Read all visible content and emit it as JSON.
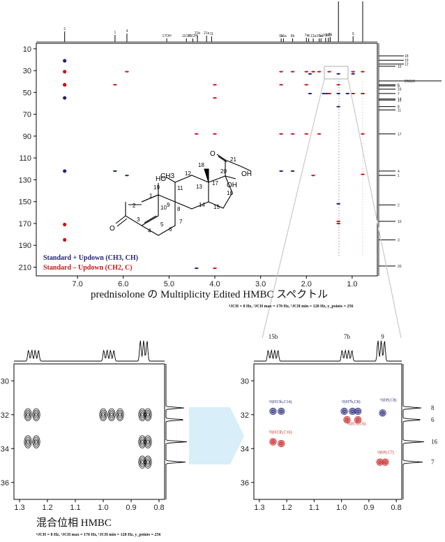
{
  "chart_data": [
    {
      "type": "scatter",
      "name": "main",
      "title": "prednisolone の Multiplicity Edited HMBC スペクトル",
      "params": "ⁿJCH = 8 Hz, ¹JCH max = 170 Hz, ¹JCH min = 120 Hz, y_points = 256",
      "xlim": [
        7.9,
        0.45
      ],
      "ylim": [
        5,
        218
      ],
      "xticks": [
        "7.0",
        "6.0",
        "5.0",
        "4.0",
        "3.0",
        "2.0",
        "1.0"
      ],
      "xtick_values": [
        7.0,
        6.0,
        5.0,
        4.0,
        3.0,
        2.0,
        1.0
      ],
      "yticks": [
        "10",
        "30",
        "50",
        "70",
        "90",
        "110",
        "130",
        "150",
        "170",
        "190",
        "210"
      ],
      "ytick_values": [
        10,
        30,
        50,
        70,
        90,
        110,
        130,
        150,
        170,
        190,
        210
      ],
      "legend": [
        {
          "label": "Standard + Updown (CH3, CH)",
          "color": "#23237a"
        },
        {
          "label": "Standard – Updown (CH2, C)",
          "color": "#c41818"
        }
      ],
      "h_peak_labels": [
        "2",
        "1",
        "4",
        "17OH",
        "11OH",
        "21OH",
        "21b",
        "21a",
        "11",
        "6a",
        "16a",
        "6b",
        "7a",
        "8",
        "12a",
        "15a",
        "14",
        "16b",
        "12b",
        "7b",
        "19",
        "9",
        "18"
      ],
      "h_peak_positions": [
        7.28,
        6.18,
        5.92,
        5.05,
        4.62,
        4.48,
        4.38,
        4.18,
        4.07,
        2.55,
        2.5,
        2.3,
        2.0,
        1.95,
        1.85,
        1.72,
        1.68,
        1.58,
        1.52,
        1.48,
        1.3,
        0.98,
        0.77
      ],
      "c_peak_labels": [
        "18",
        "19",
        "12",
        "15",
        "DMSO",
        "6",
        "9",
        "16",
        "7",
        "14",
        "13",
        "8",
        "11",
        "17",
        "4",
        "1",
        "2",
        "10",
        "3",
        "20"
      ],
      "c_peak_positions": [
        16.5,
        20.5,
        24,
        26,
        39.5,
        43,
        44,
        47,
        51,
        56,
        57,
        63,
        66,
        88,
        122,
        126,
        153,
        168,
        185,
        209
      ],
      "series": [
        {
          "name": "Standard + Updown (CH3, CH)",
          "color": "#23237a",
          "points": [
            [
              7.28,
              21
            ],
            [
              7.28,
              43
            ],
            [
              7.28,
              55
            ],
            [
              7.28,
              122
            ],
            [
              6.18,
              122
            ],
            [
              5.92,
              126
            ],
            [
              2.55,
              122
            ],
            [
              2.3,
              122
            ],
            [
              1.92,
              33
            ],
            [
              1.92,
              51
            ],
            [
              1.62,
              51
            ],
            [
              1.55,
              51
            ],
            [
              1.5,
              51
            ],
            [
              1.3,
              33
            ],
            [
              1.3,
              51
            ],
            [
              1.3,
              63
            ],
            [
              1.3,
              152
            ],
            [
              1.1,
              51
            ],
            [
              0.98,
              33
            ],
            [
              0.98,
              51
            ],
            [
              0.77,
              51
            ],
            [
              4.4,
              211
            ]
          ]
        },
        {
          "name": "Standard – Updown (CH2, C)",
          "color": "#c41818",
          "points": [
            [
              7.28,
              31
            ],
            [
              7.28,
              43
            ],
            [
              7.28,
              171
            ],
            [
              7.28,
              185
            ],
            [
              6.18,
              43
            ],
            [
              5.92,
              31
            ],
            [
              4.4,
              88
            ],
            [
              4.0,
              43
            ],
            [
              4.0,
              55
            ],
            [
              4.0,
              88
            ],
            [
              4.0,
              211
            ],
            [
              2.55,
              31
            ],
            [
              2.55,
              43
            ],
            [
              2.55,
              88
            ],
            [
              2.3,
              31
            ],
            [
              2.3,
              88
            ],
            [
              2.0,
              31
            ],
            [
              2.0,
              43
            ],
            [
              2.0,
              88
            ],
            [
              1.85,
              31
            ],
            [
              1.85,
              126
            ],
            [
              1.72,
              31
            ],
            [
              1.72,
              88
            ],
            [
              1.5,
              31
            ],
            [
              1.5,
              51
            ],
            [
              1.3,
              43
            ],
            [
              1.3,
              168
            ],
            [
              1.3,
              170
            ],
            [
              0.98,
              31
            ],
            [
              0.98,
              51
            ],
            [
              0.77,
              31
            ],
            [
              0.77,
              51
            ],
            [
              0.77,
              88
            ],
            [
              0.77,
              125
            ]
          ]
        }
      ],
      "structure": {
        "atoms": [
          "1",
          "2",
          "3",
          "4",
          "5",
          "6",
          "7",
          "8",
          "9",
          "10",
          "11",
          "12",
          "13",
          "14",
          "15",
          "16",
          "17",
          "18",
          "19",
          "20",
          "21"
        ],
        "groups": [
          "HO",
          "OH",
          "OH",
          "O",
          "O",
          "CH3",
          "CH3"
        ]
      }
    },
    {
      "type": "scatter",
      "name": "zoom-left",
      "title": "混合位相 HMBC",
      "params": "ⁿJCH = 8 Hz, ¹JCH max = 170 Hz, ¹JCH min = 120 Hz, y_points = 256",
      "xlim": [
        1.32,
        0.78
      ],
      "ylim": [
        29,
        37
      ],
      "xticks": [
        "1.3",
        "1.2",
        "1.1",
        "1.0",
        "0.9",
        "0.8"
      ],
      "xtick_values": [
        1.3,
        1.2,
        1.1,
        1.0,
        0.9,
        0.8
      ],
      "yticks": [
        "30",
        "32",
        "34",
        "36"
      ],
      "ytick_values": [
        30,
        32,
        34,
        36
      ],
      "series": [
        {
          "name": "",
          "color": "#000000",
          "points": [
            [
              1.27,
              32
            ],
            [
              1.24,
              32
            ],
            [
              1.27,
              33.6
            ],
            [
              1.24,
              33.6
            ],
            [
              1.0,
              32
            ],
            [
              0.97,
              32
            ],
            [
              0.94,
              32
            ],
            [
              0.86,
              32
            ],
            [
              0.84,
              32
            ],
            [
              0.86,
              33.6
            ],
            [
              0.84,
              33.6
            ],
            [
              0.86,
              34.8
            ],
            [
              0.84,
              34.8
            ]
          ]
        }
      ]
    },
    {
      "type": "scatter",
      "name": "zoom-right",
      "xlim": [
        1.32,
        0.78
      ],
      "ylim": [
        29,
        37
      ],
      "xticks": [
        "1.3",
        "1.2",
        "1.1",
        "1.0",
        "0.9",
        "0.8"
      ],
      "xtick_values": [
        1.3,
        1.2,
        1.1,
        1.0,
        0.9,
        0.8
      ],
      "yticks": [
        "30",
        "32",
        "34",
        "36"
      ],
      "ytick_values": [
        30,
        32,
        34,
        36
      ],
      "h_peak_labels": [
        "15b",
        "7b",
        "9"
      ],
      "h_peak_positions": [
        1.25,
        0.98,
        0.85
      ],
      "c_peak_labels": [
        "8",
        "6",
        "16",
        "7"
      ],
      "c_peak_positions": [
        31.6,
        32.3,
        33.6,
        34.8
      ],
      "annotations": [
        {
          "label": "²J(H15b,C14)",
          "x": 1.265,
          "y": 31.3,
          "color": "#23237a"
        },
        {
          "label": "²J(H7b,C8)",
          "x": 1.0,
          "y": 31.3,
          "color": "#23237a"
        },
        {
          "label": "²J(H9,C8)",
          "x": 0.86,
          "y": 31.2,
          "color": "#23237a"
        },
        {
          "label": "²J(H7b,C6)",
          "x": 0.98,
          "y": 32.6,
          "color": "#c41818"
        },
        {
          "label": "²J(H15b,C16)",
          "x": 1.265,
          "y": 33.1,
          "color": "#c41818"
        },
        {
          "label": "²J(H9,C7)",
          "x": 0.87,
          "y": 34.3,
          "color": "#c41818"
        }
      ],
      "series": [
        {
          "name": "",
          "color": "#23237a",
          "points": [
            [
              1.25,
              31.8
            ],
            [
              1.22,
              31.8
            ],
            [
              0.99,
              31.8
            ],
            [
              0.96,
              31.8
            ],
            [
              0.94,
              31.8
            ],
            [
              0.85,
              31.9
            ]
          ]
        },
        {
          "name": "",
          "color": "#c41818",
          "points": [
            [
              0.98,
              32.3
            ],
            [
              0.94,
              32.3
            ],
            [
              1.25,
              33.6
            ],
            [
              1.22,
              33.7
            ],
            [
              0.86,
              34.8
            ],
            [
              0.84,
              34.8
            ]
          ]
        }
      ]
    }
  ]
}
